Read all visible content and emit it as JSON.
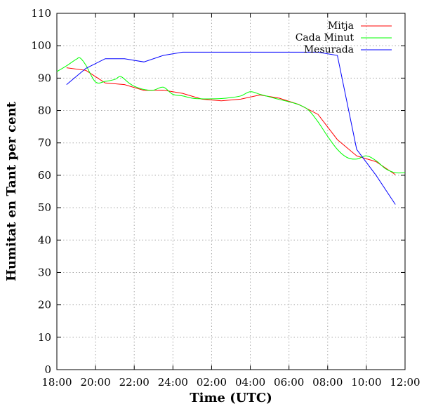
{
  "chart_data": {
    "type": "line",
    "title": "",
    "xlabel": "Time (UTC)",
    "ylabel": "Humitat en Tant per cent",
    "ylim": [
      0,
      110
    ],
    "yticks": [
      0,
      10,
      20,
      30,
      40,
      50,
      60,
      70,
      80,
      90,
      100,
      110
    ],
    "xlim": [
      0,
      18
    ],
    "xtick_labels": [
      "18:00",
      "20:00",
      "22:00",
      "24:00",
      "02:00",
      "04:00",
      "06:00",
      "08:00",
      "10:00",
      "12:00"
    ],
    "grid": true,
    "legend_position": "top-right",
    "x_units": "hours since 18:00",
    "series": [
      {
        "name": "Mitja",
        "color": "#ff0000",
        "x": [
          0.5,
          1.5,
          2.5,
          3.5,
          4.5,
          5.5,
          6.5,
          7.5,
          8.5,
          9.5,
          10.5,
          11.5,
          12.5,
          13.5,
          14.5,
          15.5,
          16.5,
          17.5
        ],
        "values": [
          93.2,
          92.4,
          88.5,
          88.0,
          86.2,
          86.3,
          85.3,
          83.5,
          83.0,
          83.5,
          84.8,
          83.8,
          81.9,
          78.8,
          71.0,
          66.0,
          64.2,
          60.2
        ]
      },
      {
        "name": "Cada Minut",
        "color": "#00ff00",
        "x": [
          0,
          0.5,
          1.0,
          1.2,
          1.5,
          2.0,
          2.5,
          3.0,
          3.3,
          3.7,
          4.0,
          4.5,
          5.0,
          5.5,
          6.0,
          6.5,
          7.0,
          7.5,
          8.0,
          8.5,
          9.0,
          9.5,
          10.0,
          10.5,
          11.0,
          11.5,
          12.0,
          12.5,
          13.0,
          13.5,
          14.0,
          14.5,
          15.0,
          15.5,
          16.0,
          16.5,
          17.0,
          17.5,
          18.0
        ],
        "values": [
          92.0,
          93.8,
          95.8,
          96.2,
          94.0,
          88.8,
          89.0,
          89.6,
          90.5,
          88.6,
          87.5,
          86.5,
          86.3,
          87.2,
          85.0,
          84.5,
          83.8,
          83.6,
          83.6,
          83.7,
          84.0,
          84.5,
          85.8,
          85.0,
          84.2,
          83.4,
          82.7,
          81.8,
          80.2,
          76.5,
          72.0,
          68.0,
          65.5,
          65.0,
          66.0,
          64.5,
          62.0,
          60.8,
          60.8
        ]
      },
      {
        "name": "Mesurada",
        "color": "#0000ff",
        "x": [
          0.5,
          1.5,
          2.5,
          3.5,
          4.5,
          5.5,
          6.5,
          7.5,
          8.5,
          9.5,
          10.5,
          11.5,
          12.5,
          13.5,
          14.5,
          15.5,
          16.5,
          17.5
        ],
        "values": [
          88.0,
          93.0,
          96.0,
          96.0,
          95.0,
          97.0,
          98.0,
          98.0,
          98.0,
          98.0,
          98.0,
          98.0,
          98.0,
          98.0,
          97.0,
          68.0,
          60.0,
          51.0
        ]
      }
    ]
  }
}
